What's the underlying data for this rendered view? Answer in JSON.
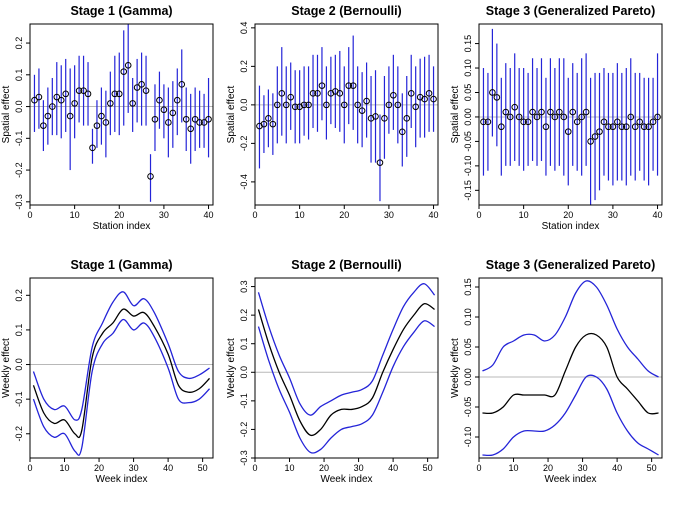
{
  "chart_data": [
    {
      "type": "scatter",
      "title": "Stage 1 (Gamma)",
      "xlabel": "Station index",
      "ylabel": "Spatial effect",
      "xlim": [
        0,
        41
      ],
      "ylim": [
        -0.31,
        0.26
      ],
      "xticks": [
        "0",
        "10",
        "20",
        "30",
        "40"
      ],
      "yticks": [
        "-0.3",
        "-0.2",
        "-0.1",
        "0.0",
        "0.1",
        "0.2"
      ],
      "x": [
        1,
        2,
        3,
        4,
        5,
        6,
        7,
        8,
        9,
        10,
        11,
        12,
        13,
        14,
        15,
        16,
        17,
        18,
        19,
        20,
        21,
        22,
        23,
        24,
        25,
        26,
        27,
        28,
        29,
        30,
        31,
        32,
        33,
        34,
        35,
        36,
        37,
        38,
        39,
        40
      ],
      "series": [
        {
          "estimate": [
            0.02,
            0.03,
            -0.06,
            -0.03,
            0.0,
            0.03,
            0.02,
            0.04,
            -0.03,
            0.01,
            0.05,
            0.05,
            0.04,
            -0.13,
            -0.06,
            -0.03,
            -0.05,
            0.01,
            0.04,
            0.04,
            0.11,
            0.13,
            0.01,
            0.06,
            0.07,
            0.05,
            -0.22,
            -0.04,
            0.02,
            -0.01,
            -0.05,
            -0.02,
            0.02,
            0.07,
            -0.04,
            -0.07,
            -0.04,
            -0.05,
            -0.05,
            -0.04
          ],
          "lower": [
            -0.08,
            -0.07,
            -0.14,
            -0.12,
            -0.09,
            -0.09,
            -0.1,
            -0.08,
            -0.2,
            -0.1,
            -0.05,
            -0.06,
            -0.06,
            -0.18,
            -0.13,
            -0.12,
            -0.16,
            -0.09,
            -0.08,
            -0.09,
            -0.06,
            -0.02,
            -0.08,
            -0.05,
            -0.06,
            -0.06,
            -0.3,
            -0.14,
            -0.07,
            -0.1,
            -0.16,
            -0.13,
            -0.09,
            -0.05,
            -0.14,
            -0.18,
            -0.14,
            -0.13,
            -0.13,
            -0.16
          ],
          "upper": [
            0.1,
            0.12,
            0.02,
            0.06,
            0.09,
            0.14,
            0.13,
            0.15,
            0.12,
            0.13,
            0.16,
            0.16,
            0.14,
            -0.07,
            0.02,
            0.06,
            0.05,
            0.11,
            0.16,
            0.17,
            0.24,
            0.26,
            0.09,
            0.15,
            0.17,
            0.16,
            -0.15,
            0.07,
            0.11,
            0.07,
            0.06,
            0.08,
            0.12,
            0.18,
            0.06,
            0.04,
            0.06,
            0.05,
            0.04,
            0.09
          ]
        }
      ]
    },
    {
      "type": "scatter",
      "title": "Stage 2 (Bernoulli)",
      "xlabel": "",
      "ylabel": "Spatial effect",
      "xlim": [
        0,
        41
      ],
      "ylim": [
        -0.52,
        0.42
      ],
      "xticks": [
        "0",
        "10",
        "20",
        "30",
        "40"
      ],
      "yticks": [
        "-0.4",
        "-0.2",
        "0.0",
        "0.2",
        "0.4"
      ],
      "x": [
        1,
        2,
        3,
        4,
        5,
        6,
        7,
        8,
        9,
        10,
        11,
        12,
        13,
        14,
        15,
        16,
        17,
        18,
        19,
        20,
        21,
        22,
        23,
        24,
        25,
        26,
        27,
        28,
        29,
        30,
        31,
        32,
        33,
        34,
        35,
        36,
        37,
        38,
        39,
        40
      ],
      "series": [
        {
          "estimate": [
            -0.11,
            -0.1,
            -0.07,
            -0.1,
            0.0,
            0.06,
            0.0,
            0.04,
            -0.01,
            -0.01,
            0.0,
            0.0,
            0.06,
            0.06,
            0.1,
            0.0,
            0.06,
            0.07,
            0.06,
            0.0,
            0.1,
            0.1,
            0.0,
            -0.03,
            0.02,
            -0.07,
            -0.06,
            -0.3,
            -0.07,
            0.0,
            0.05,
            0.0,
            -0.14,
            -0.07,
            0.06,
            -0.01,
            0.04,
            0.03,
            0.06,
            0.03
          ],
          "lower": [
            -0.33,
            -0.25,
            -0.22,
            -0.26,
            -0.2,
            -0.16,
            -0.2,
            -0.13,
            -0.2,
            -0.2,
            -0.16,
            -0.18,
            -0.12,
            -0.14,
            -0.08,
            -0.18,
            -0.1,
            -0.12,
            -0.14,
            -0.2,
            -0.1,
            -0.13,
            -0.2,
            -0.22,
            -0.17,
            -0.3,
            -0.3,
            -0.5,
            -0.28,
            -0.15,
            -0.13,
            -0.2,
            -0.32,
            -0.27,
            -0.12,
            -0.22,
            -0.17,
            -0.17,
            -0.14,
            -0.14
          ],
          "upper": [
            0.1,
            0.05,
            0.08,
            0.06,
            0.2,
            0.3,
            0.2,
            0.22,
            0.18,
            0.18,
            0.2,
            0.2,
            0.26,
            0.26,
            0.3,
            0.2,
            0.25,
            0.26,
            0.28,
            0.2,
            0.3,
            0.36,
            0.2,
            0.17,
            0.22,
            0.15,
            0.18,
            -0.05,
            0.15,
            0.2,
            0.26,
            0.2,
            0.06,
            0.15,
            0.26,
            0.2,
            0.24,
            0.25,
            0.26,
            0.2
          ]
        }
      ]
    },
    {
      "type": "scatter",
      "title": "Stage 3 (Generalized Pareto)",
      "xlabel": "Station index",
      "ylabel": "Spatial effect",
      "xlim": [
        0,
        41
      ],
      "ylim": [
        -0.18,
        0.19
      ],
      "xticks": [
        "0",
        "10",
        "20",
        "30",
        "40"
      ],
      "yticks": [
        "-0.15",
        "-0.10",
        "-0.05",
        "0.00",
        "0.05",
        "0.10",
        "0.15"
      ],
      "x": [
        1,
        2,
        3,
        4,
        5,
        6,
        7,
        8,
        9,
        10,
        11,
        12,
        13,
        14,
        15,
        16,
        17,
        18,
        19,
        20,
        21,
        22,
        23,
        24,
        25,
        26,
        27,
        28,
        29,
        30,
        31,
        32,
        33,
        34,
        35,
        36,
        37,
        38,
        39,
        40
      ],
      "series": [
        {
          "estimate": [
            -0.01,
            -0.01,
            0.05,
            0.04,
            -0.02,
            0.01,
            0.0,
            0.02,
            0.0,
            -0.01,
            -0.01,
            0.01,
            0.0,
            0.01,
            -0.02,
            0.01,
            0.0,
            0.01,
            0.0,
            -0.03,
            0.01,
            -0.01,
            0.0,
            0.01,
            -0.05,
            -0.04,
            -0.03,
            -0.01,
            -0.02,
            -0.02,
            -0.01,
            -0.02,
            -0.02,
            0.0,
            -0.02,
            -0.01,
            -0.02,
            -0.02,
            -0.01,
            0.0
          ],
          "lower": [
            -0.12,
            -0.11,
            -0.04,
            -0.06,
            -0.12,
            -0.1,
            -0.1,
            -0.09,
            -0.1,
            -0.11,
            -0.1,
            -0.09,
            -0.1,
            -0.09,
            -0.12,
            -0.1,
            -0.11,
            -0.1,
            -0.12,
            -0.14,
            -0.1,
            -0.11,
            -0.12,
            -0.1,
            -0.18,
            -0.17,
            -0.15,
            -0.12,
            -0.13,
            -0.14,
            -0.13,
            -0.13,
            -0.14,
            -0.12,
            -0.13,
            -0.11,
            -0.13,
            -0.14,
            -0.11,
            -0.12
          ],
          "upper": [
            0.1,
            0.09,
            0.18,
            0.15,
            0.08,
            0.11,
            0.1,
            0.13,
            0.1,
            0.1,
            0.09,
            0.12,
            0.1,
            0.12,
            0.08,
            0.12,
            0.1,
            0.12,
            0.12,
            0.08,
            0.11,
            0.09,
            0.12,
            0.13,
            0.08,
            0.09,
            0.09,
            0.1,
            0.09,
            0.09,
            0.11,
            0.09,
            0.1,
            0.12,
            0.09,
            0.09,
            0.08,
            0.08,
            0.08,
            0.13
          ]
        }
      ]
    },
    {
      "type": "line",
      "title": "Stage 1 (Gamma)",
      "xlabel": "Week index",
      "ylabel": "Weekly effect",
      "xlim": [
        0,
        53
      ],
      "ylim": [
        -0.27,
        0.25
      ],
      "xticks": [
        "0",
        "10",
        "20",
        "30",
        "40",
        "50"
      ],
      "yticks": [
        "-0.2",
        "-0.1",
        "0.0",
        "0.1",
        "0.2"
      ],
      "x": [
        1,
        4,
        7,
        10,
        13,
        15,
        18,
        21,
        24,
        27,
        30,
        33,
        36,
        40,
        43,
        46,
        49,
        52
      ],
      "series": [
        {
          "values": [
            -0.06,
            -0.14,
            -0.17,
            -0.16,
            -0.2,
            -0.19,
            0.02,
            0.09,
            0.12,
            0.16,
            0.14,
            0.15,
            0.11,
            0.03,
            -0.06,
            -0.08,
            -0.07,
            -0.04
          ]
        },
        {
          "values": [
            -0.02,
            -0.1,
            -0.13,
            -0.12,
            -0.16,
            -0.13,
            0.05,
            0.12,
            0.18,
            0.21,
            0.17,
            0.19,
            0.15,
            0.06,
            -0.02,
            -0.04,
            -0.03,
            -0.01
          ]
        },
        {
          "values": [
            -0.1,
            -0.18,
            -0.21,
            -0.2,
            -0.25,
            -0.24,
            -0.02,
            0.06,
            0.09,
            0.13,
            0.1,
            0.12,
            0.08,
            -0.01,
            -0.1,
            -0.11,
            -0.1,
            -0.07
          ]
        }
      ]
    },
    {
      "type": "line",
      "title": "Stage 2 (Bernoulli)",
      "xlabel": "Week index",
      "ylabel": "Weekly effect",
      "xlim": [
        0,
        53
      ],
      "ylim": [
        -0.3,
        0.33
      ],
      "xticks": [
        "0",
        "10",
        "20",
        "30",
        "40",
        "50"
      ],
      "yticks": [
        "-0.3",
        "-0.2",
        "-0.1",
        "0.0",
        "0.1",
        "0.2",
        "0.3"
      ],
      "x": [
        1,
        4,
        7,
        10,
        13,
        16,
        19,
        22,
        25,
        28,
        31,
        34,
        37,
        40,
        43,
        46,
        49,
        52
      ],
      "series": [
        {
          "values": [
            0.22,
            0.1,
            0.0,
            -0.08,
            -0.17,
            -0.22,
            -0.2,
            -0.15,
            -0.13,
            -0.13,
            -0.12,
            -0.09,
            0.0,
            0.08,
            0.15,
            0.2,
            0.24,
            0.22
          ]
        },
        {
          "values": [
            0.28,
            0.16,
            0.06,
            -0.02,
            -0.11,
            -0.15,
            -0.12,
            -0.1,
            -0.08,
            -0.07,
            -0.06,
            -0.03,
            0.06,
            0.15,
            0.23,
            0.28,
            0.31,
            0.27
          ]
        },
        {
          "values": [
            0.16,
            0.04,
            -0.06,
            -0.14,
            -0.23,
            -0.28,
            -0.27,
            -0.23,
            -0.2,
            -0.19,
            -0.18,
            -0.15,
            -0.07,
            0.02,
            0.09,
            0.14,
            0.18,
            0.16
          ]
        }
      ]
    },
    {
      "type": "line",
      "title": "Stage 3 (Generalized Pareto)",
      "xlabel": "Week index",
      "ylabel": "Weekly effect",
      "xlim": [
        0,
        53
      ],
      "ylim": [
        -0.135,
        0.165
      ],
      "xticks": [
        "0",
        "10",
        "20",
        "30",
        "40",
        "50"
      ],
      "yticks": [
        "-0.10",
        "-0.05",
        "0.00",
        "0.05",
        "0.10",
        "0.15"
      ],
      "x": [
        1,
        4,
        7,
        10,
        13,
        16,
        19,
        22,
        25,
        28,
        31,
        34,
        37,
        40,
        43,
        46,
        49,
        52
      ],
      "series": [
        {
          "values": [
            -0.06,
            -0.06,
            -0.05,
            -0.03,
            -0.03,
            -0.03,
            -0.03,
            -0.03,
            0.01,
            0.05,
            0.07,
            0.07,
            0.05,
            0.0,
            -0.02,
            -0.04,
            -0.06,
            -0.06
          ]
        },
        {
          "values": [
            0.01,
            0.02,
            0.05,
            0.06,
            0.07,
            0.07,
            0.06,
            0.07,
            0.1,
            0.14,
            0.16,
            0.15,
            0.12,
            0.08,
            0.05,
            0.03,
            0.01,
            0.0
          ]
        },
        {
          "values": [
            -0.13,
            -0.13,
            -0.12,
            -0.1,
            -0.09,
            -0.09,
            -0.09,
            -0.08,
            -0.06,
            -0.03,
            0.0,
            0.0,
            -0.02,
            -0.06,
            -0.09,
            -0.11,
            -0.12,
            -0.13
          ]
        }
      ]
    }
  ]
}
